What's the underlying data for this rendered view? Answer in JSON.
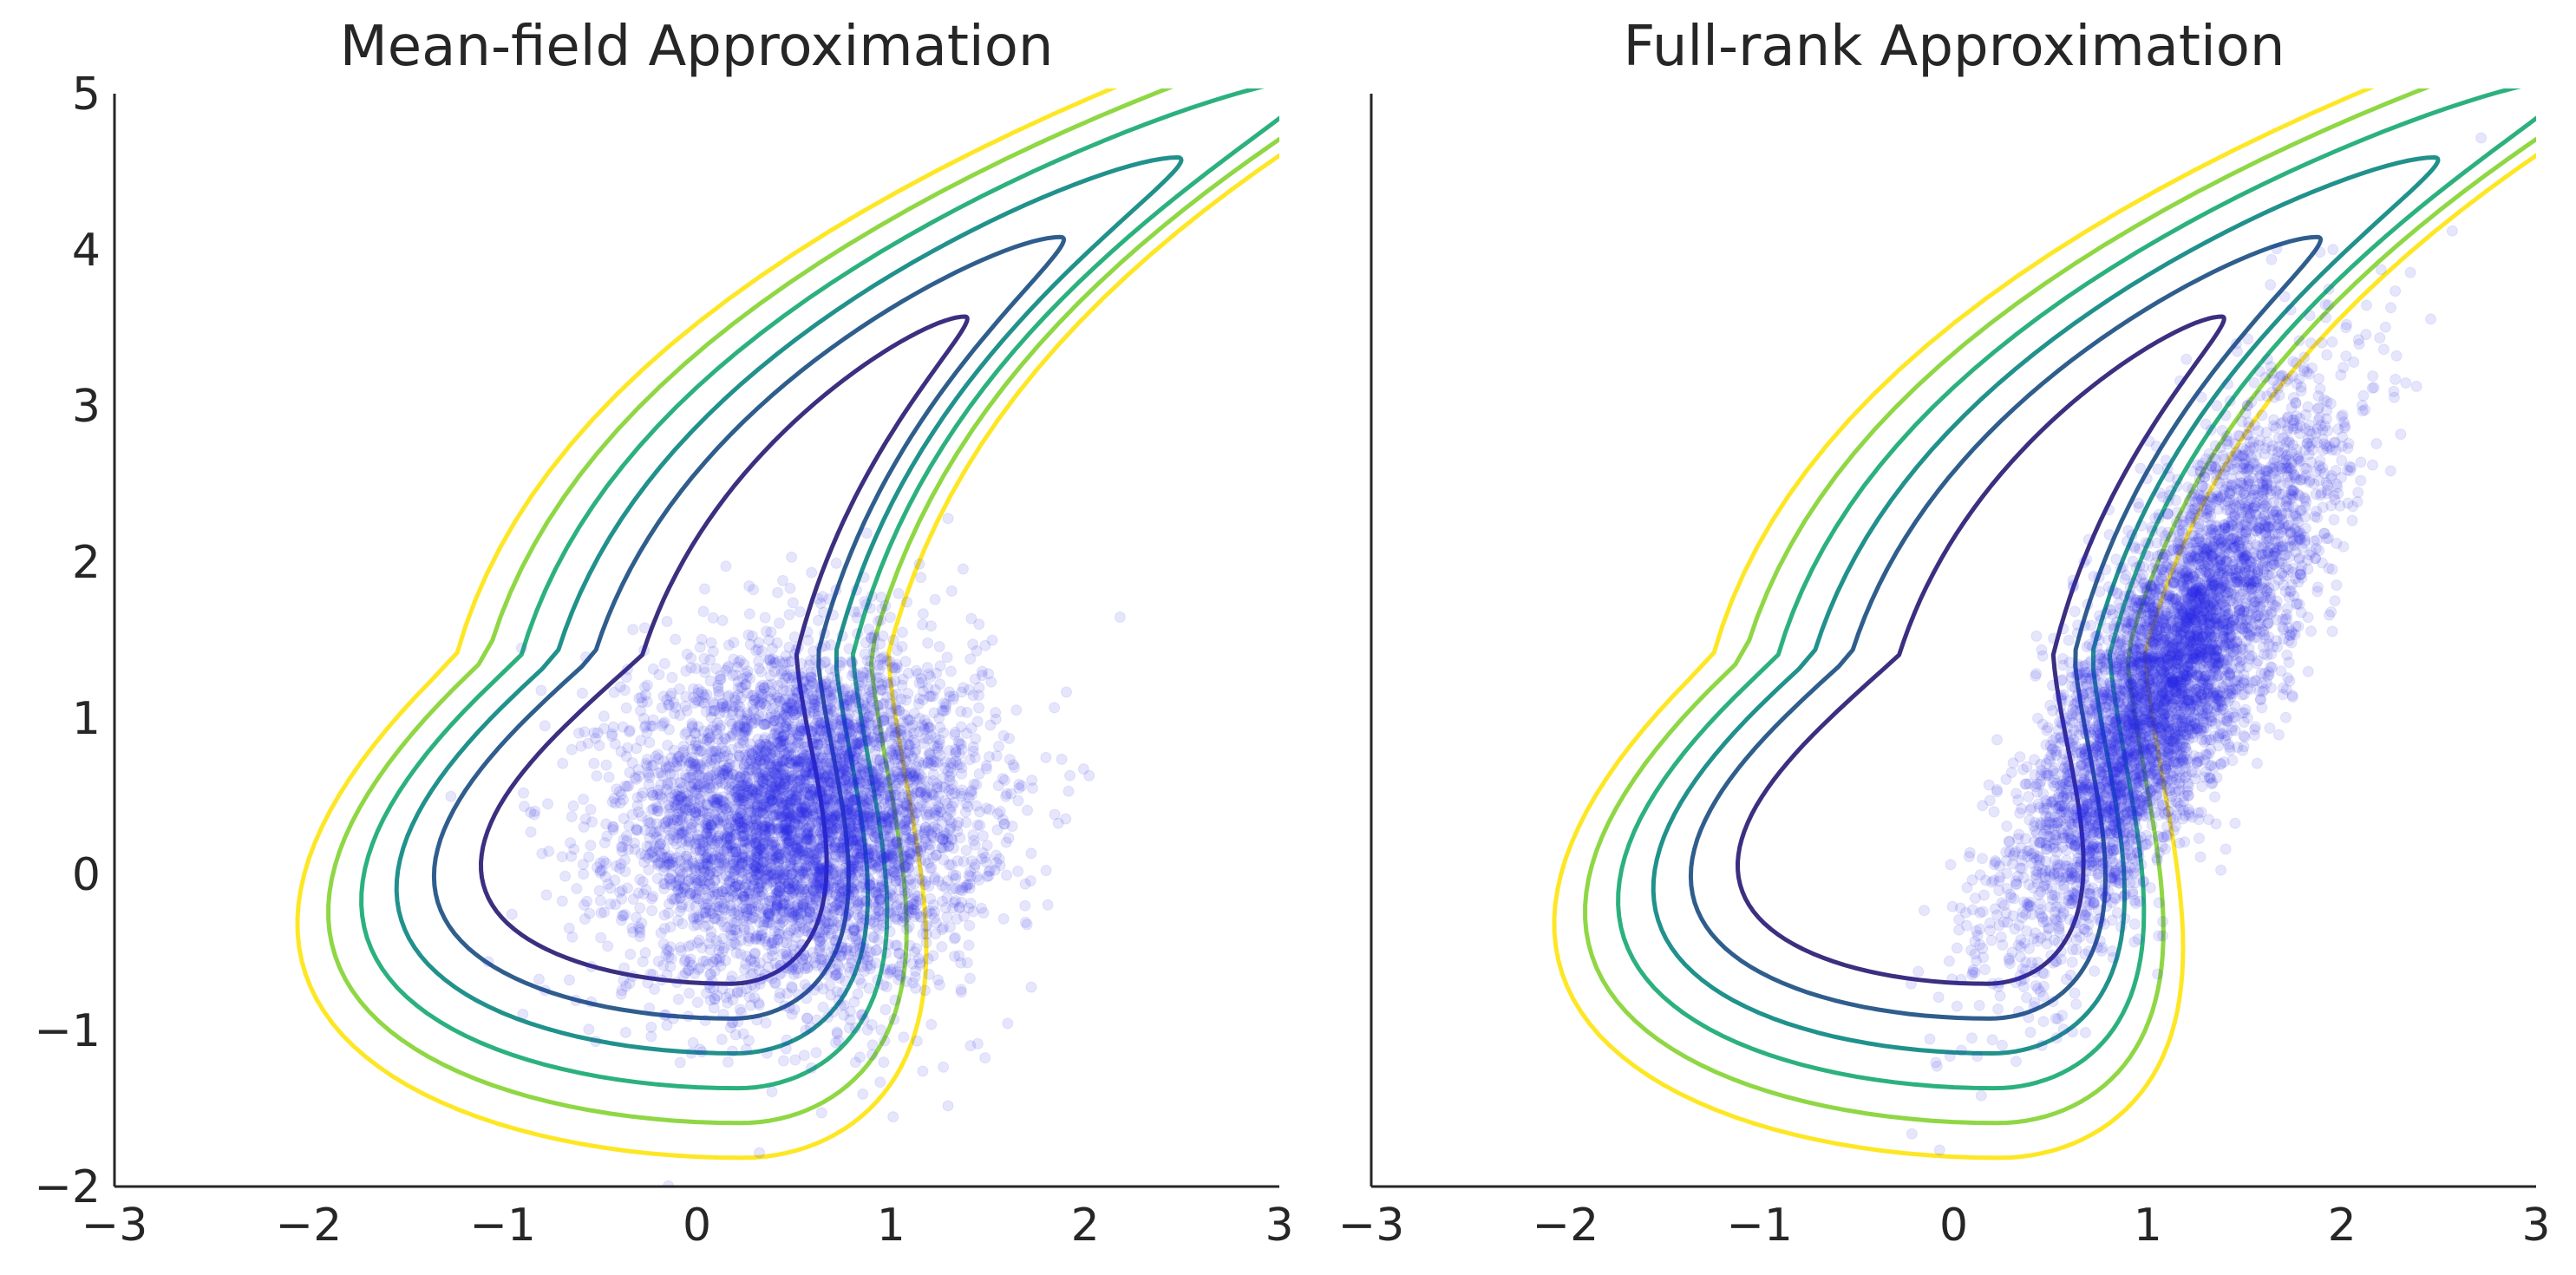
{
  "figure": {
    "background": "#ffffff"
  },
  "chart_data": [
    {
      "type": "scatter",
      "title": "Mean-field Approximation",
      "xlabel": "",
      "ylabel": "",
      "xlim": [
        -3,
        3
      ],
      "ylim": [
        -2,
        5
      ],
      "x_ticks": [
        "−3",
        "−2",
        "−1",
        "0",
        "1",
        "2",
        "3"
      ],
      "y_ticks": [
        "−2",
        "−1",
        "0",
        "1",
        "2",
        "3",
        "4",
        "5"
      ],
      "grid": false,
      "legend": "none",
      "contours": {
        "density": "banana-shaped (Rosenbrock-like) target",
        "levels": 6,
        "colors": [
          "#3b2f80",
          "#2f5e8d",
          "#21918c",
          "#2cb17e",
          "#8fd744",
          "#fde725"
        ]
      },
      "samples": {
        "count": 5000,
        "mean": [
          0.55,
          0.35
        ],
        "std": [
          0.45,
          0.55
        ],
        "correlation": 0.05,
        "color": "#2b2be8",
        "alpha": 0.12
      }
    },
    {
      "type": "scatter",
      "title": "Full-rank Approximation",
      "xlabel": "",
      "ylabel": "",
      "xlim": [
        -3,
        3
      ],
      "ylim": [
        -2,
        5
      ],
      "x_ticks": [
        "−3",
        "−2",
        "−1",
        "0",
        "1",
        "2",
        "3"
      ],
      "y_ticks": [],
      "grid": false,
      "legend": "none",
      "contours": {
        "density": "banana-shaped (Rosenbrock-like) target",
        "levels": 6,
        "colors": [
          "#3b2f80",
          "#2f5e8d",
          "#21918c",
          "#2cb17e",
          "#8fd744",
          "#fde725"
        ]
      },
      "samples": {
        "count": 5000,
        "mean": [
          1.1,
          1.25
        ],
        "std": [
          0.4,
          0.85
        ],
        "correlation": 0.8,
        "color": "#2b2be8",
        "alpha": 0.12
      }
    }
  ]
}
